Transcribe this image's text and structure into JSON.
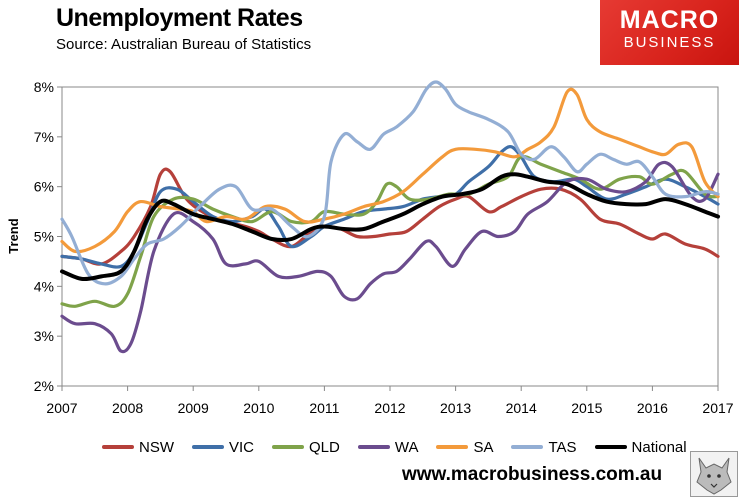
{
  "header": {
    "title": "Unemployment Rates",
    "source": "Source: Australian Bureau of Statistics"
  },
  "logo": {
    "line1": "MACRO",
    "line2": "BUSINESS"
  },
  "footer": {
    "url": "www.macrobusiness.com.au"
  },
  "chart_data": {
    "type": "line",
    "title": "Unemployment Rates",
    "xlabel": "",
    "ylabel": "Trend",
    "xlim": [
      2007,
      2017
    ],
    "ylim": [
      2,
      8
    ],
    "xticks": [
      "2007",
      "2008",
      "2009",
      "2010",
      "2011",
      "2012",
      "2013",
      "2014",
      "2015",
      "2016",
      "2017"
    ],
    "yticks": [
      "2%",
      "3%",
      "4%",
      "5%",
      "6%",
      "7%",
      "8%"
    ],
    "grid": false,
    "legend_position": "bottom",
    "series": [
      {
        "name": "NSW",
        "color": "#b5403a",
        "x": [
          2007.0,
          2007.3,
          2007.6,
          2007.9,
          2008.1,
          2008.35,
          2008.5,
          2008.65,
          2008.9,
          2009.2,
          2009.5,
          2009.8,
          2010.0,
          2010.2,
          2010.5,
          2010.8,
          2011.0,
          2011.25,
          2011.5,
          2011.75,
          2012.0,
          2012.25,
          2012.5,
          2012.75,
          2013.0,
          2013.2,
          2013.5,
          2013.7,
          2014.0,
          2014.3,
          2014.6,
          2014.9,
          2015.2,
          2015.5,
          2015.8,
          2016.0,
          2016.2,
          2016.5,
          2016.8,
          2017.0
        ],
        "y": [
          4.6,
          4.55,
          4.45,
          4.7,
          5.0,
          5.6,
          6.25,
          6.3,
          5.75,
          5.45,
          5.3,
          5.2,
          5.1,
          4.95,
          4.8,
          5.1,
          5.2,
          5.15,
          5.0,
          5.0,
          5.05,
          5.1,
          5.35,
          5.6,
          5.75,
          5.8,
          5.5,
          5.6,
          5.8,
          5.95,
          5.95,
          5.75,
          5.35,
          5.25,
          5.05,
          4.95,
          5.05,
          4.85,
          4.75,
          4.6
        ]
      },
      {
        "name": "VIC",
        "color": "#3f6fa8",
        "x": [
          2007.0,
          2007.3,
          2007.6,
          2007.9,
          2008.1,
          2008.3,
          2008.5,
          2008.75,
          2009.0,
          2009.3,
          2009.6,
          2009.9,
          2010.1,
          2010.3,
          2010.5,
          2010.8,
          2011.0,
          2011.3,
          2011.6,
          2011.9,
          2012.2,
          2012.5,
          2012.75,
          2013.0,
          2013.2,
          2013.5,
          2013.7,
          2013.85,
          2014.0,
          2014.2,
          2014.5,
          2014.8,
          2015.0,
          2015.3,
          2015.6,
          2015.9,
          2016.2,
          2016.5,
          2016.8,
          2017.0
        ],
        "y": [
          4.6,
          4.55,
          4.45,
          4.4,
          4.7,
          5.3,
          5.9,
          5.95,
          5.7,
          5.4,
          5.3,
          5.4,
          5.55,
          5.2,
          4.8,
          5.0,
          5.2,
          5.35,
          5.5,
          5.55,
          5.6,
          5.75,
          5.8,
          5.85,
          6.1,
          6.4,
          6.7,
          6.8,
          6.6,
          6.2,
          6.1,
          6.15,
          6.0,
          5.75,
          5.85,
          6.0,
          6.15,
          6.0,
          5.8,
          5.65
        ]
      },
      {
        "name": "QLD",
        "color": "#7fa34a",
        "x": [
          2007.0,
          2007.2,
          2007.5,
          2007.8,
          2008.0,
          2008.2,
          2008.4,
          2008.7,
          2009.0,
          2009.3,
          2009.6,
          2009.9,
          2010.2,
          2010.5,
          2010.8,
          2011.0,
          2011.3,
          2011.6,
          2011.8,
          2011.95,
          2012.1,
          2012.3,
          2012.6,
          2012.9,
          2013.2,
          2013.5,
          2013.8,
          2014.0,
          2014.3,
          2014.6,
          2014.9,
          2015.2,
          2015.5,
          2015.8,
          2016.0,
          2016.3,
          2016.5,
          2016.8,
          2017.0
        ],
        "y": [
          3.65,
          3.6,
          3.7,
          3.6,
          3.85,
          4.6,
          5.4,
          5.75,
          5.75,
          5.55,
          5.4,
          5.3,
          5.5,
          5.3,
          5.3,
          5.5,
          5.45,
          5.45,
          5.7,
          6.05,
          6.0,
          5.75,
          5.75,
          5.85,
          5.85,
          6.05,
          6.2,
          6.6,
          6.45,
          6.3,
          6.15,
          5.95,
          6.15,
          6.2,
          6.05,
          6.25,
          6.3,
          5.85,
          5.8
        ]
      },
      {
        "name": "WA",
        "color": "#6b4c8e",
        "x": [
          2007.0,
          2007.2,
          2007.5,
          2007.75,
          2007.9,
          2008.05,
          2008.2,
          2008.4,
          2008.7,
          2009.0,
          2009.3,
          2009.5,
          2009.8,
          2010.0,
          2010.3,
          2010.6,
          2010.9,
          2011.1,
          2011.3,
          2011.5,
          2011.7,
          2011.9,
          2012.1,
          2012.3,
          2012.55,
          2012.7,
          2012.95,
          2013.15,
          2013.4,
          2013.65,
          2013.9,
          2014.1,
          2014.4,
          2014.7,
          2015.0,
          2015.3,
          2015.6,
          2015.9,
          2016.1,
          2016.3,
          2016.6,
          2016.8,
          2017.0
        ],
        "y": [
          3.4,
          3.25,
          3.25,
          3.05,
          2.7,
          2.85,
          3.5,
          4.7,
          5.45,
          5.3,
          4.95,
          4.45,
          4.45,
          4.5,
          4.2,
          4.2,
          4.3,
          4.2,
          3.8,
          3.75,
          4.05,
          4.25,
          4.3,
          4.55,
          4.9,
          4.8,
          4.4,
          4.75,
          5.1,
          5.0,
          5.1,
          5.45,
          5.7,
          6.1,
          6.15,
          5.95,
          5.9,
          6.1,
          6.45,
          6.4,
          5.8,
          5.75,
          6.25
        ]
      },
      {
        "name": "SA",
        "color": "#f39a3b",
        "x": [
          2007.0,
          2007.2,
          2007.5,
          2007.8,
          2008.0,
          2008.2,
          2008.5,
          2008.8,
          2009.0,
          2009.2,
          2009.5,
          2009.8,
          2010.1,
          2010.4,
          2010.7,
          2011.0,
          2011.3,
          2011.6,
          2011.9,
          2012.2,
          2012.5,
          2012.8,
          2013.0,
          2013.3,
          2013.6,
          2013.9,
          2014.1,
          2014.3,
          2014.5,
          2014.7,
          2014.85,
          2015.0,
          2015.2,
          2015.5,
          2015.8,
          2016.0,
          2016.2,
          2016.4,
          2016.6,
          2016.8,
          2017.0
        ],
        "y": [
          4.9,
          4.7,
          4.8,
          5.1,
          5.5,
          5.7,
          5.6,
          5.55,
          5.5,
          5.3,
          5.4,
          5.35,
          5.6,
          5.55,
          5.3,
          5.35,
          5.45,
          5.6,
          5.7,
          5.9,
          6.25,
          6.6,
          6.75,
          6.75,
          6.7,
          6.6,
          6.75,
          6.9,
          7.2,
          7.9,
          7.85,
          7.35,
          7.1,
          6.95,
          6.8,
          6.7,
          6.65,
          6.85,
          6.8,
          6.1,
          5.8
        ]
      },
      {
        "name": "TAS",
        "color": "#93aed4",
        "x": [
          2007.0,
          2007.15,
          2007.4,
          2007.65,
          2007.9,
          2008.1,
          2008.3,
          2008.55,
          2008.8,
          2009.1,
          2009.4,
          2009.65,
          2009.9,
          2010.2,
          2010.5,
          2010.75,
          2011.0,
          2011.1,
          2011.3,
          2011.5,
          2011.7,
          2011.9,
          2012.1,
          2012.35,
          2012.55,
          2012.7,
          2012.85,
          2013.0,
          2013.2,
          2013.5,
          2013.8,
          2014.0,
          2014.2,
          2014.45,
          2014.65,
          2014.85,
          2015.0,
          2015.2,
          2015.4,
          2015.6,
          2015.8,
          2016.0,
          2016.2,
          2016.5,
          2016.8,
          2017.0
        ],
        "y": [
          5.35,
          5.0,
          4.25,
          4.05,
          4.2,
          4.55,
          4.85,
          4.95,
          5.2,
          5.6,
          5.95,
          6.0,
          5.55,
          5.55,
          5.2,
          5.0,
          5.4,
          6.5,
          7.05,
          6.9,
          6.75,
          7.05,
          7.2,
          7.5,
          7.95,
          8.1,
          7.95,
          7.65,
          7.5,
          7.35,
          7.1,
          6.65,
          6.55,
          6.8,
          6.6,
          6.3,
          6.45,
          6.65,
          6.55,
          6.45,
          6.5,
          6.2,
          5.85,
          5.8,
          5.9,
          5.85
        ]
      },
      {
        "name": "National",
        "color": "#000000",
        "x": [
          2007.0,
          2007.3,
          2007.6,
          2007.9,
          2008.1,
          2008.3,
          2008.5,
          2008.7,
          2009.0,
          2009.3,
          2009.6,
          2009.9,
          2010.2,
          2010.5,
          2010.8,
          2011.0,
          2011.3,
          2011.6,
          2011.9,
          2012.2,
          2012.5,
          2012.8,
          2013.1,
          2013.4,
          2013.7,
          2013.9,
          2014.1,
          2014.4,
          2014.7,
          2015.0,
          2015.3,
          2015.6,
          2015.9,
          2016.2,
          2016.5,
          2016.8,
          2017.0
        ],
        "y": [
          4.3,
          4.15,
          4.2,
          4.3,
          4.7,
          5.35,
          5.7,
          5.65,
          5.45,
          5.35,
          5.25,
          5.1,
          4.95,
          4.95,
          5.15,
          5.2,
          5.15,
          5.15,
          5.3,
          5.45,
          5.65,
          5.8,
          5.85,
          5.95,
          6.2,
          6.25,
          6.2,
          6.1,
          6.05,
          5.85,
          5.7,
          5.65,
          5.65,
          5.75,
          5.65,
          5.5,
          5.4
        ]
      }
    ]
  }
}
